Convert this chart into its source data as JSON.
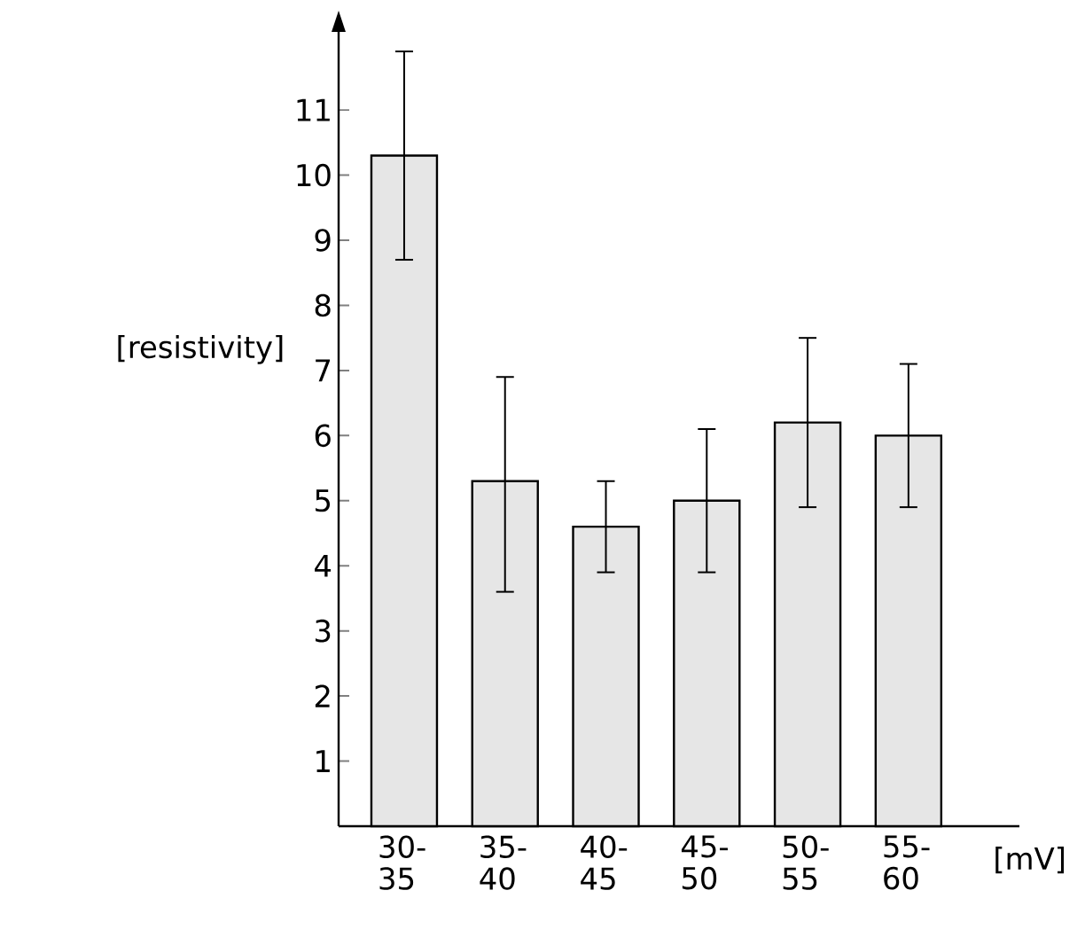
{
  "chart_data": {
    "type": "bar",
    "ylabel": "[resistivity]",
    "xlabel": "[mV]",
    "categories": [
      "30-35",
      "35-40",
      "40-45",
      "45-50",
      "50-55",
      "55-60"
    ],
    "values": [
      10.3,
      5.3,
      4.6,
      5.0,
      6.2,
      6.0
    ],
    "errors": [
      [
        8.7,
        11.9
      ],
      [
        3.6,
        6.9
      ],
      [
        3.9,
        5.3
      ],
      [
        3.9,
        6.1
      ],
      [
        4.9,
        7.5
      ],
      [
        4.9,
        7.1
      ]
    ],
    "color": "#e6e6e6",
    "ylim": [
      0,
      12.2
    ],
    "yticks": [
      1,
      2,
      3,
      4,
      5,
      6,
      7,
      8,
      9,
      10,
      11
    ],
    "grid": false
  }
}
